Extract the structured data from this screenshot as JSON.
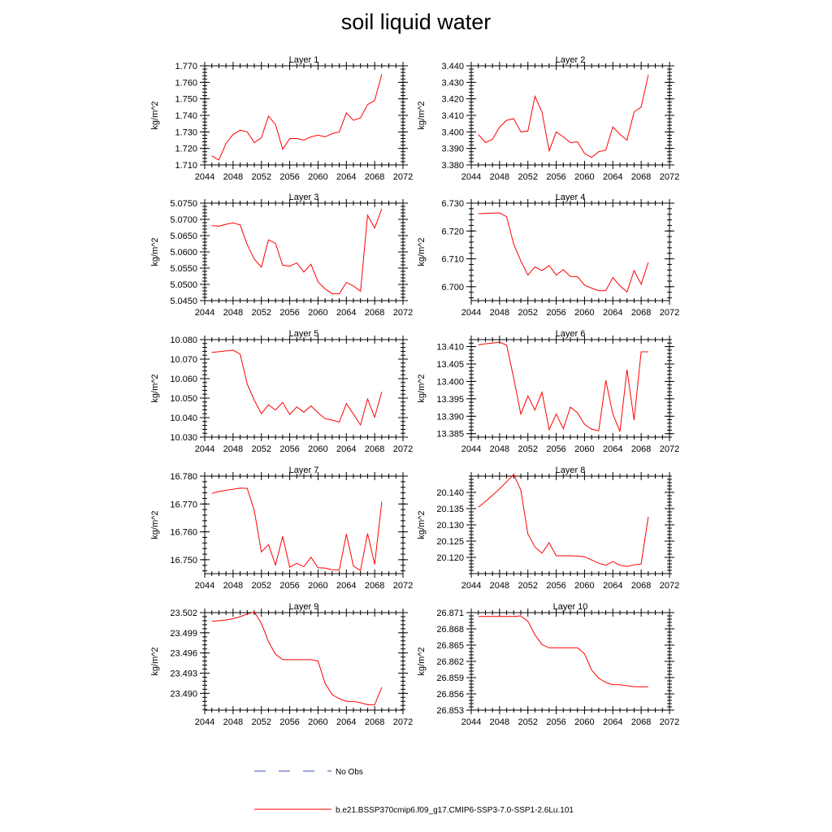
{
  "title": "soil liquid water",
  "legend": {
    "items": [
      {
        "label": "No Obs",
        "color": "#3b4fb0",
        "dashed": true
      },
      {
        "label": "b.e21.BSSP370cmip6.f09_g17.CMIP6-SSP3-7.0-SSP1-2.6Lu.101",
        "color": "#ff0000",
        "dashed": false
      }
    ]
  },
  "chart_data": [
    {
      "type": "line",
      "title": "Layer 1",
      "ylabel": "kg/m^2",
      "xlim": [
        2044,
        2072
      ],
      "xticks": [
        2044,
        2048,
        2052,
        2056,
        2060,
        2064,
        2068,
        2072
      ],
      "ylim": [
        1.71,
        1.77
      ],
      "yticks": [
        "1.710",
        "1.720",
        "1.730",
        "1.740",
        "1.750",
        "1.760",
        "1.770"
      ],
      "yminor": 0.002,
      "series": [
        {
          "color": "#ff0000",
          "x": [
            2045,
            2046,
            2047,
            2048,
            2049,
            2050,
            2051,
            2052,
            2053,
            2054,
            2055,
            2056,
            2057,
            2058,
            2059,
            2060,
            2061,
            2062,
            2063,
            2064,
            2065,
            2066,
            2067,
            2068,
            2069
          ],
          "values": [
            1.7155,
            1.713,
            1.723,
            1.7285,
            1.731,
            1.73,
            1.7235,
            1.7265,
            1.7395,
            1.7345,
            1.7195,
            1.726,
            1.726,
            1.725,
            1.727,
            1.728,
            1.727,
            1.729,
            1.73,
            1.7415,
            1.737,
            1.7385,
            1.7465,
            1.749,
            1.765
          ]
        }
      ]
    },
    {
      "type": "line",
      "title": "Layer 2",
      "ylabel": "kg/m^2",
      "xlim": [
        2044,
        2072
      ],
      "xticks": [
        2044,
        2048,
        2052,
        2056,
        2060,
        2064,
        2068,
        2072
      ],
      "ylim": [
        3.38,
        3.44
      ],
      "yticks": [
        "3.380",
        "3.390",
        "3.400",
        "3.410",
        "3.420",
        "3.430",
        "3.440"
      ],
      "yminor": 0.002,
      "series": [
        {
          "color": "#ff0000",
          "x": [
            2045,
            2046,
            2047,
            2048,
            2049,
            2050,
            2051,
            2052,
            2053,
            2054,
            2055,
            2056,
            2057,
            2058,
            2059,
            2060,
            2061,
            2062,
            2063,
            2064,
            2065,
            2066,
            2067,
            2068,
            2069
          ],
          "values": [
            3.3985,
            3.3935,
            3.3955,
            3.403,
            3.407,
            3.408,
            3.4,
            3.4005,
            3.4215,
            3.412,
            3.3885,
            3.4,
            3.397,
            3.3935,
            3.394,
            3.387,
            3.3845,
            3.388,
            3.389,
            3.403,
            3.3985,
            3.395,
            3.412,
            3.415,
            3.4345
          ]
        }
      ]
    },
    {
      "type": "line",
      "title": "Layer 3",
      "ylabel": "kg/m^2",
      "xlim": [
        2044,
        2072
      ],
      "xticks": [
        2044,
        2048,
        2052,
        2056,
        2060,
        2064,
        2068,
        2072
      ],
      "ylim": [
        5.045,
        5.075
      ],
      "yticks": [
        "5.0450",
        "5.0500",
        "5.0550",
        "5.0600",
        "5.0650",
        "5.0700",
        "5.0750"
      ],
      "yminor": 0.001,
      "series": [
        {
          "color": "#ff0000",
          "x": [
            2045,
            2046,
            2047,
            2048,
            2049,
            2050,
            2051,
            2052,
            2053,
            2054,
            2055,
            2056,
            2057,
            2058,
            2059,
            2060,
            2061,
            2062,
            2063,
            2064,
            2065,
            2066,
            2067,
            2068,
            2069
          ],
          "values": [
            5.0681,
            5.0679,
            5.0685,
            5.0689,
            5.0683,
            5.0622,
            5.0578,
            5.0553,
            5.0637,
            5.0626,
            5.0559,
            5.0556,
            5.0566,
            5.0538,
            5.0562,
            5.0508,
            5.0486,
            5.0471,
            5.0471,
            5.0506,
            5.0495,
            5.0479,
            5.0713,
            5.0673,
            5.0733
          ]
        }
      ]
    },
    {
      "type": "line",
      "title": "Layer 4",
      "ylabel": "kg/m^2",
      "xlim": [
        2044,
        2072
      ],
      "xticks": [
        2044,
        2048,
        2052,
        2056,
        2060,
        2064,
        2068,
        2072
      ],
      "ylim": [
        6.695,
        6.73
      ],
      "yticks": [
        "6.700",
        "6.710",
        "6.720",
        "6.730"
      ],
      "yminor": 0.002,
      "series": [
        {
          "color": "#ff0000",
          "x": [
            2045,
            2046,
            2047,
            2048,
            2049,
            2050,
            2051,
            2052,
            2053,
            2054,
            2055,
            2056,
            2057,
            2058,
            2059,
            2060,
            2061,
            2062,
            2063,
            2064,
            2065,
            2066,
            2067,
            2068,
            2069
          ],
          "values": [
            6.7262,
            6.7263,
            6.7264,
            6.7265,
            6.7251,
            6.7152,
            6.7093,
            6.7042,
            6.7071,
            6.7058,
            6.7076,
            6.7042,
            6.7061,
            6.7037,
            6.7036,
            6.7006,
            6.6995,
            6.6986,
            6.6986,
            6.7033,
            6.7003,
            6.6981,
            6.7058,
            6.7009,
            6.7087
          ]
        }
      ]
    },
    {
      "type": "line",
      "title": "Layer 5",
      "ylabel": "kg/m^2",
      "xlim": [
        2044,
        2072
      ],
      "xticks": [
        2044,
        2048,
        2052,
        2056,
        2060,
        2064,
        2068,
        2072
      ],
      "ylim": [
        10.03,
        10.08
      ],
      "yticks": [
        "10.030",
        "10.040",
        "10.050",
        "10.060",
        "10.070",
        "10.080"
      ],
      "yminor": 0.002,
      "series": [
        {
          "color": "#ff0000",
          "x": [
            2045,
            2046,
            2047,
            2048,
            2049,
            2050,
            2051,
            2052,
            2053,
            2054,
            2055,
            2056,
            2057,
            2058,
            2059,
            2060,
            2061,
            2062,
            2063,
            2064,
            2065,
            2066,
            2067,
            2068,
            2069
          ],
          "values": [
            10.0735,
            10.0738,
            10.0742,
            10.0746,
            10.0726,
            10.0572,
            10.0489,
            10.042,
            10.0466,
            10.0439,
            10.0478,
            10.0416,
            10.0455,
            10.0428,
            10.046,
            10.0425,
            10.0395,
            10.0387,
            10.0377,
            10.0472,
            10.0418,
            10.0362,
            10.0496,
            10.0402,
            10.0533
          ]
        }
      ]
    },
    {
      "type": "line",
      "title": "Layer 6",
      "ylabel": "kg/m^2",
      "xlim": [
        2044,
        2072
      ],
      "xticks": [
        2044,
        2048,
        2052,
        2056,
        2060,
        2064,
        2068,
        2072
      ],
      "ylim": [
        13.384,
        13.412
      ],
      "yticks": [
        "13.385",
        "13.390",
        "13.395",
        "13.400",
        "13.405",
        "13.410"
      ],
      "yminor": 0.001,
      "series": [
        {
          "color": "#ff0000",
          "x": [
            2045,
            2046,
            2047,
            2048,
            2049,
            2050,
            2051,
            2052,
            2053,
            2054,
            2055,
            2056,
            2057,
            2058,
            2059,
            2060,
            2061,
            2062,
            2063,
            2064,
            2065,
            2066,
            2067,
            2068,
            2069
          ],
          "values": [
            13.4105,
            13.4108,
            13.411,
            13.4113,
            13.4104,
            13.4009,
            13.3906,
            13.3958,
            13.3918,
            13.3969,
            13.3862,
            13.3906,
            13.3864,
            13.3926,
            13.391,
            13.3877,
            13.3863,
            13.3858,
            13.4003,
            13.3906,
            13.3856,
            13.4034,
            13.3889,
            13.4085,
            13.4085
          ]
        }
      ]
    },
    {
      "type": "line",
      "title": "Layer 7",
      "ylabel": "kg/m^2",
      "xlim": [
        2044,
        2072
      ],
      "xticks": [
        2044,
        2048,
        2052,
        2056,
        2060,
        2064,
        2068,
        2072
      ],
      "ylim": [
        16.745,
        16.78
      ],
      "yticks": [
        "16.750",
        "16.760",
        "16.770",
        "16.780"
      ],
      "yminor": 0.002,
      "series": [
        {
          "color": "#ff0000",
          "x": [
            2045,
            2046,
            2047,
            2048,
            2049,
            2050,
            2051,
            2052,
            2053,
            2054,
            2055,
            2056,
            2057,
            2058,
            2059,
            2060,
            2061,
            2062,
            2063,
            2064,
            2065,
            2066,
            2067,
            2068,
            2069
          ],
          "values": [
            16.7738,
            16.7745,
            16.7749,
            16.7753,
            16.7757,
            16.7756,
            16.7676,
            16.7528,
            16.7554,
            16.7481,
            16.7584,
            16.7473,
            16.7487,
            16.7475,
            16.7509,
            16.7471,
            16.747,
            16.7464,
            16.7463,
            16.7592,
            16.7477,
            16.7461,
            16.7594,
            16.7483,
            16.7708
          ]
        }
      ]
    },
    {
      "type": "line",
      "title": "Layer 8",
      "ylabel": "kg/m^2",
      "xlim": [
        2044,
        2072
      ],
      "xticks": [
        2044,
        2048,
        2052,
        2056,
        2060,
        2064,
        2068,
        2072
      ],
      "ylim": [
        20.115,
        20.145
      ],
      "yticks": [
        "20.120",
        "20.125",
        "20.130",
        "20.135",
        "20.140"
      ],
      "yminor": 0.001,
      "series": [
        {
          "color": "#ff0000",
          "x": [
            2045,
            2046,
            2047,
            2048,
            2049,
            2050,
            2051,
            2052,
            2053,
            2054,
            2055,
            2056,
            2057,
            2058,
            2059,
            2060,
            2061,
            2062,
            2063,
            2064,
            2065,
            2066,
            2067,
            2068,
            2069
          ],
          "values": [
            20.1354,
            20.1372,
            20.1391,
            20.1411,
            20.1433,
            20.1455,
            20.1407,
            20.1272,
            20.1232,
            20.1213,
            20.1245,
            20.1205,
            20.1205,
            20.1205,
            20.1204,
            20.1202,
            20.1192,
            20.1182,
            20.1176,
            20.1187,
            20.1176,
            20.1172,
            20.1177,
            20.118,
            20.1325
          ]
        }
      ]
    },
    {
      "type": "line",
      "title": "Layer 9",
      "ylabel": "kg/m^2",
      "xlim": [
        2044,
        2072
      ],
      "xticks": [
        2044,
        2048,
        2052,
        2056,
        2060,
        2064,
        2068,
        2072
      ],
      "ylim": [
        23.4875,
        23.502
      ],
      "yticks": [
        "23.490",
        "23.493",
        "23.496",
        "23.499",
        "23.502"
      ],
      "yminor": 0.0006,
      "series": [
        {
          "color": "#ff0000",
          "x": [
            2045,
            2046,
            2047,
            2048,
            2049,
            2050,
            2051,
            2052,
            2053,
            2054,
            2055,
            2056,
            2057,
            2058,
            2059,
            2060,
            2061,
            2062,
            2063,
            2064,
            2065,
            2066,
            2067,
            2068,
            2069
          ],
          "values": [
            23.5007,
            23.5008,
            23.5009,
            23.5011,
            23.5014,
            23.5018,
            23.5021,
            23.5004,
            23.4977,
            23.4958,
            23.495,
            23.495,
            23.495,
            23.495,
            23.495,
            23.4948,
            23.4915,
            23.4898,
            23.4892,
            23.4888,
            23.4888,
            23.4886,
            23.4883,
            23.4883,
            23.4909
          ]
        }
      ]
    },
    {
      "type": "line",
      "title": "Layer 10",
      "ylabel": "kg/m^2",
      "xlim": [
        2044,
        2072
      ],
      "xticks": [
        2044,
        2048,
        2052,
        2056,
        2060,
        2064,
        2068,
        2072
      ],
      "ylim": [
        26.853,
        26.871
      ],
      "yticks": [
        "26.853",
        "26.856",
        "26.859",
        "26.862",
        "26.865",
        "26.868",
        "26.871"
      ],
      "yminor": 0.0006,
      "series": [
        {
          "color": "#ff0000",
          "x": [
            2045,
            2046,
            2047,
            2048,
            2049,
            2050,
            2051,
            2052,
            2053,
            2054,
            2055,
            2056,
            2057,
            2058,
            2059,
            2060,
            2061,
            2062,
            2063,
            2064,
            2065,
            2066,
            2067,
            2068,
            2069
          ],
          "values": [
            26.8703,
            26.8703,
            26.8703,
            26.8703,
            26.8703,
            26.8703,
            26.8704,
            26.8694,
            26.8669,
            26.8651,
            26.8645,
            26.8645,
            26.8645,
            26.8645,
            26.8645,
            26.8634,
            26.8604,
            26.8589,
            26.8581,
            26.8577,
            26.8577,
            26.8575,
            26.8573,
            26.8573,
            26.8573
          ]
        }
      ]
    }
  ]
}
